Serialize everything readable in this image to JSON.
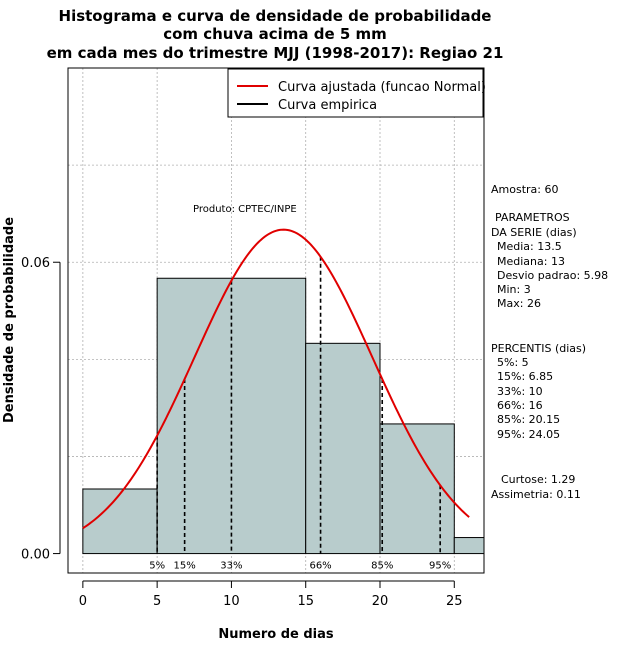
{
  "chart_data": {
    "type": "bar",
    "title_lines": [
      "Histograma e curva de densidade de probabilidade",
      "com chuva acima de 5 mm",
      "em cada mes do trimestre MJJ (1998-2017): Regiao 21"
    ],
    "xlabel": "Numero de dias",
    "ylabel": "Densidade de probabilidade",
    "xlim": [
      -1,
      27
    ],
    "ylim": [
      -0.004,
      0.1
    ],
    "x_ticks": [
      0,
      5,
      10,
      15,
      20,
      25
    ],
    "y_ticks": [
      0.0,
      0.06
    ],
    "y_tick_labels": [
      "0.00",
      "0.06"
    ],
    "grid": true,
    "grid_x": [
      0,
      5,
      10,
      15,
      20,
      25
    ],
    "grid_y": [
      0.02,
      0.04,
      0.06,
      0.08
    ],
    "bins": [
      {
        "start": 0,
        "end": 5,
        "density": 0.0133
      },
      {
        "start": 5,
        "end": 15,
        "density": 0.0567
      },
      {
        "start": 15,
        "end": 20,
        "density": 0.0433
      },
      {
        "start": 20,
        "end": 25,
        "density": 0.0267
      },
      {
        "start": 25,
        "end": 27,
        "density": 0.0033
      }
    ],
    "fitted_curve": {
      "name": "Curva ajustada (funcao Normal)",
      "mean": 13.5,
      "sd": 5.98,
      "x_range": [
        0,
        26
      ],
      "color": "#e00000"
    },
    "empirical_curve": {
      "name": "Curva empirica",
      "color": "#000000"
    },
    "percentiles": [
      {
        "label": "5%",
        "value": 5
      },
      {
        "label": "15%",
        "value": 6.85
      },
      {
        "label": "33%",
        "value": 10
      },
      {
        "label": "66%",
        "value": 16
      },
      {
        "label": "85%",
        "value": 20.15
      },
      {
        "label": "95%",
        "value": 24.05
      }
    ],
    "bar_color": "#b8cccc",
    "legend_position": "top-right",
    "annotation": "Produto: CPTEC/INPE"
  },
  "stats": {
    "amostra": "Amostra: 60",
    "param_title1": "PARAMETROS",
    "param_title2": "DA SERIE (dias)",
    "media": "Media: 13.5",
    "mediana": "Mediana: 13",
    "desvio": "Desvio padrao: 5.98",
    "min": "Min: 3",
    "max": "Max: 26",
    "percentis_title": "PERCENTIS (dias)",
    "p5": "5%: 5",
    "p15": "15%: 6.85",
    "p33": "33%: 10",
    "p66": "66%: 16",
    "p85": "85%: 20.15",
    "p95": "95%: 24.05",
    "curtose": "Curtose: 1.29",
    "assimetria": "Assimetria: 0.11"
  }
}
